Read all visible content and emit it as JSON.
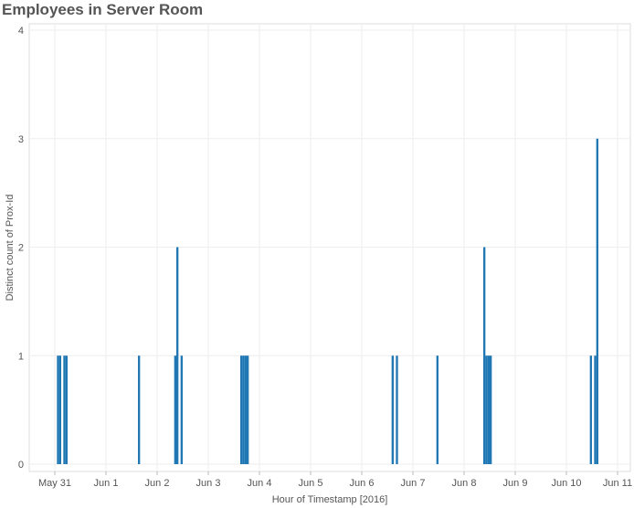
{
  "chart_data": {
    "type": "bar",
    "title": "Employees in Server Room",
    "xlabel": "Hour of Timestamp [2016]",
    "ylabel": "Distinct count of Prox-Id",
    "x_ticks": [
      "May 31",
      "Jun 1",
      "Jun 2",
      "Jun 3",
      "Jun 4",
      "Jun 5",
      "Jun 6",
      "Jun 7",
      "Jun 8",
      "Jun 9",
      "Jun 10",
      "Jun 11"
    ],
    "y_ticks": [
      "0",
      "1",
      "2",
      "3",
      "4"
    ],
    "ylim": [
      0,
      4
    ],
    "xlim": [
      "2016-05-30 12:00",
      "2016-06-11 06:00"
    ],
    "grid": true,
    "bar_color": "#1f77b4",
    "points": [
      {
        "x": "2016-05-31 01:00",
        "y": 1
      },
      {
        "x": "2016-05-31 02:00",
        "y": 1
      },
      {
        "x": "2016-05-31 04:00",
        "y": 1
      },
      {
        "x": "2016-05-31 05:00",
        "y": 1
      },
      {
        "x": "2016-06-01 15:00",
        "y": 1
      },
      {
        "x": "2016-06-02 08:00",
        "y": 1
      },
      {
        "x": "2016-06-02 09:00",
        "y": 2
      },
      {
        "x": "2016-06-02 11:00",
        "y": 1
      },
      {
        "x": "2016-06-03 15:00",
        "y": 1
      },
      {
        "x": "2016-06-03 16:00",
        "y": 1
      },
      {
        "x": "2016-06-03 17:00",
        "y": 1
      },
      {
        "x": "2016-06-03 18:00",
        "y": 1
      },
      {
        "x": "2016-06-06 14:00",
        "y": 1
      },
      {
        "x": "2016-06-06 16:00",
        "y": 1
      },
      {
        "x": "2016-06-07 11:00",
        "y": 1
      },
      {
        "x": "2016-06-08 09:00",
        "y": 2
      },
      {
        "x": "2016-06-08 10:00",
        "y": 1
      },
      {
        "x": "2016-06-08 11:00",
        "y": 1
      },
      {
        "x": "2016-06-08 12:00",
        "y": 1
      },
      {
        "x": "2016-06-10 11:00",
        "y": 1
      },
      {
        "x": "2016-06-10 13:00",
        "y": 1
      },
      {
        "x": "2016-06-10 14:00",
        "y": 3
      }
    ]
  }
}
